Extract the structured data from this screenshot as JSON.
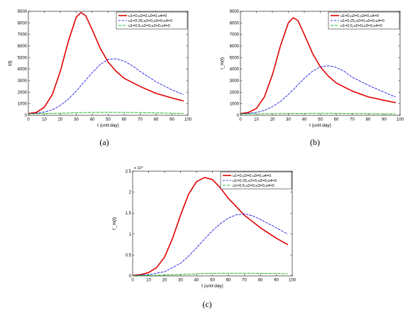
{
  "colors": {
    "series1": "#e00000",
    "series2": "#0000dd",
    "series3": "#22bb22"
  },
  "chart_data": [
    {
      "type": "line",
      "panel_label": "(a)",
      "xlabel": "t (unit:day)",
      "ylabel": "I(t)",
      "xlim": [
        0,
        100
      ],
      "ylim": [
        0,
        9000
      ],
      "xticks": [
        "0",
        "10",
        "20",
        "30",
        "40",
        "50",
        "60",
        "70",
        "80",
        "90",
        "100"
      ],
      "yticks": [
        "0",
        "1000",
        "2000",
        "3000",
        "4000",
        "5000",
        "6000",
        "7000",
        "8000",
        "9000"
      ],
      "exponent_label": "",
      "legend_position": "top-right",
      "series": [
        {
          "name": "u1=0,u2=0,u3=0,u4=0",
          "style": "solid",
          "x": [
            0,
            5,
            10,
            15,
            20,
            25,
            30,
            33,
            36,
            40,
            45,
            50,
            55,
            60,
            70,
            80,
            90,
            97
          ],
          "y": [
            150,
            250,
            700,
            1800,
            3800,
            6400,
            8500,
            8900,
            8600,
            7400,
            5800,
            4600,
            3800,
            3200,
            2500,
            1900,
            1500,
            1250
          ]
        },
        {
          "name": "u1=0.25,u2=0,u3=0,u4=0",
          "style": "dashed",
          "x": [
            0,
            5,
            10,
            15,
            20,
            25,
            30,
            35,
            40,
            45,
            50,
            55,
            60,
            65,
            70,
            80,
            90,
            97
          ],
          "y": [
            150,
            180,
            280,
            480,
            850,
            1400,
            2100,
            2900,
            3700,
            4400,
            4850,
            4900,
            4700,
            4300,
            3800,
            2900,
            2200,
            1800
          ]
        },
        {
          "name": "u1=0.5,u2=0,u3=0,u4=0",
          "style": "dashed",
          "x": [
            0,
            10,
            20,
            30,
            40,
            50,
            60,
            70,
            80,
            90,
            97
          ],
          "y": [
            130,
            150,
            180,
            220,
            250,
            260,
            250,
            230,
            200,
            180,
            160
          ]
        }
      ]
    },
    {
      "type": "line",
      "panel_label": "(b)",
      "xlabel": "t (unit:day)",
      "ylabel": "I_m(t)",
      "xlim": [
        0,
        100
      ],
      "ylim": [
        0,
        9000
      ],
      "xticks": [
        "0",
        "10",
        "20",
        "30",
        "40",
        "50",
        "60",
        "70",
        "80",
        "90",
        "100"
      ],
      "yticks": [
        "0",
        "1000",
        "2000",
        "3000",
        "4000",
        "5000",
        "6000",
        "7000",
        "8000",
        "9000"
      ],
      "exponent_label": "",
      "legend_position": "top-right",
      "series": [
        {
          "name": "u1=0,u2=0,u3=0,u4=0",
          "style": "solid",
          "x": [
            0,
            5,
            10,
            15,
            20,
            25,
            30,
            33,
            36,
            40,
            45,
            50,
            55,
            60,
            70,
            80,
            90,
            97
          ],
          "y": [
            150,
            250,
            600,
            1600,
            3500,
            6000,
            8000,
            8450,
            8200,
            7000,
            5400,
            4200,
            3400,
            2800,
            2100,
            1600,
            1300,
            1100
          ]
        },
        {
          "name": "u1=0.25,u2=0,u3=0,u4=0",
          "style": "dashed",
          "x": [
            0,
            5,
            10,
            15,
            20,
            25,
            30,
            35,
            40,
            45,
            50,
            55,
            60,
            65,
            70,
            80,
            90,
            97
          ],
          "y": [
            150,
            170,
            250,
            420,
            750,
            1200,
            1800,
            2500,
            3200,
            3800,
            4200,
            4300,
            4150,
            3800,
            3300,
            2600,
            2000,
            1600
          ]
        },
        {
          "name": "u1=0.5,u2=0,u3=0,u4=0",
          "style": "dashed",
          "x": [
            0,
            10,
            20,
            30,
            40,
            50,
            60,
            70,
            80,
            90,
            97
          ],
          "y": [
            120,
            130,
            140,
            150,
            160,
            170,
            165,
            150,
            140,
            130,
            120
          ]
        }
      ]
    },
    {
      "type": "line",
      "panel_label": "(c)",
      "xlabel": "t (unit:day)",
      "ylabel": "I'_m(t)",
      "xlim": [
        0,
        100
      ],
      "ylim": [
        0,
        2.5
      ],
      "xticks": [
        "0",
        "10",
        "20",
        "30",
        "40",
        "50",
        "60",
        "70",
        "80",
        "90",
        "100"
      ],
      "yticks": [
        "0",
        "0.5",
        "1",
        "1.5",
        "2",
        "2.5"
      ],
      "exponent_label": "x 10⁴",
      "legend_position": "top-right",
      "series": [
        {
          "name": "u1=0,u2=0,u3=0,u4=0",
          "style": "solid",
          "x": [
            0,
            5,
            10,
            15,
            20,
            25,
            30,
            35,
            40,
            45,
            50,
            55,
            60,
            65,
            70,
            80,
            90,
            97
          ],
          "y": [
            0.01,
            0.03,
            0.08,
            0.2,
            0.45,
            0.9,
            1.45,
            1.95,
            2.25,
            2.35,
            2.3,
            2.1,
            1.85,
            1.65,
            1.45,
            1.15,
            0.9,
            0.75
          ]
        },
        {
          "name": "u1=0.25,u2=0,u3=0,u4=0",
          "style": "dashed",
          "x": [
            0,
            10,
            20,
            30,
            35,
            40,
            45,
            50,
            55,
            60,
            65,
            70,
            75,
            80,
            90,
            97
          ],
          "y": [
            0.01,
            0.03,
            0.1,
            0.3,
            0.47,
            0.67,
            0.88,
            1.08,
            1.25,
            1.38,
            1.46,
            1.48,
            1.44,
            1.35,
            1.15,
            1.0
          ]
        },
        {
          "name": "u1=0.5,u2=0,u3=0,u4=0",
          "style": "dashed",
          "x": [
            0,
            10,
            20,
            30,
            40,
            50,
            60,
            70,
            80,
            90,
            97
          ],
          "y": [
            0.005,
            0.01,
            0.02,
            0.035,
            0.05,
            0.06,
            0.065,
            0.065,
            0.06,
            0.055,
            0.05
          ]
        }
      ]
    }
  ]
}
